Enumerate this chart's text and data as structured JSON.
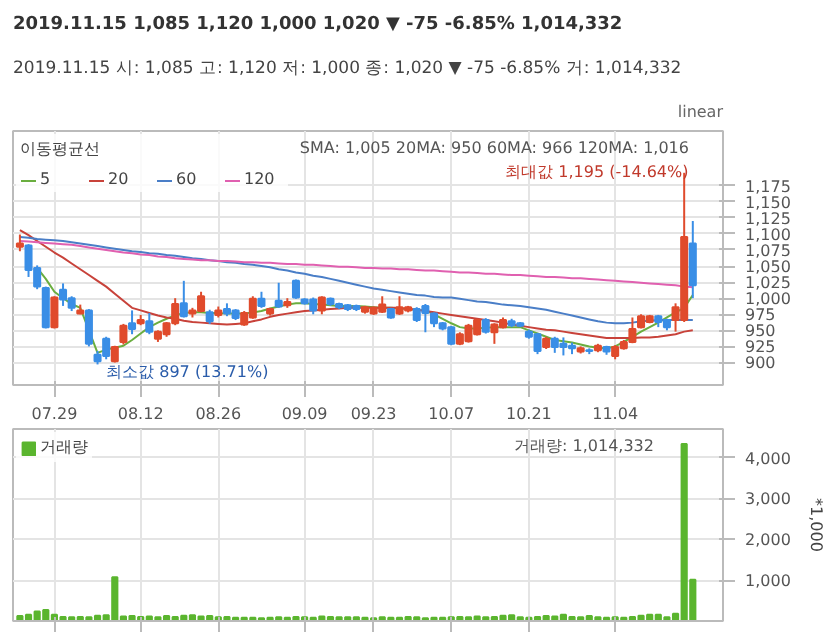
{
  "chart_data": [
    {
      "type": "candlestick",
      "title": "2019.11.15  1,085  1,120  1,000  1,020 ▼ -75 -6.85%  1,014,332",
      "subtitle": "2019.11.15 시: 1,085 고: 1,120 저: 1,000 종: 1,020 ▼  -75 -6.85% 거: 1,014,332",
      "categories": [
        null,
        null,
        null,
        null,
        "07.29",
        null,
        null,
        null,
        null,
        null,
        null,
        null,
        null,
        null,
        "08.12",
        null,
        null,
        null,
        null,
        null,
        null,
        null,
        null,
        "08.26",
        null,
        null,
        null,
        null,
        null,
        null,
        null,
        null,
        null,
        "09.09",
        null,
        null,
        null,
        null,
        null,
        null,
        null,
        "09.23",
        null,
        null,
        null,
        null,
        null,
        null,
        null,
        null,
        "10.07",
        null,
        null,
        null,
        null,
        null,
        null,
        null,
        null,
        "10.21",
        null,
        null,
        null,
        null,
        null,
        null,
        null,
        null,
        null,
        "11.04",
        null,
        null,
        null,
        null,
        null,
        null,
        null,
        null,
        null
      ],
      "ohlc": [
        [
          1080,
          1099,
          1073,
          1085
        ],
        [
          1082,
          1084,
          1033,
          1044
        ],
        [
          1047,
          1051,
          1014,
          1018
        ],
        [
          1016,
          1018,
          953,
          955
        ],
        [
          955,
          1003,
          953,
          1001
        ],
        [
          1013,
          1023,
          988,
          998
        ],
        [
          1000,
          1003,
          980,
          985
        ],
        [
          976,
          990,
          975,
          981
        ],
        [
          981,
          983,
          925,
          929
        ],
        [
          912,
          918,
          897,
          902
        ],
        [
          937,
          940,
          905,
          910
        ],
        [
          902,
          926,
          900,
          924
        ],
        [
          932,
          960,
          928,
          957
        ],
        [
          961,
          981,
          944,
          952
        ],
        [
          961,
          974,
          958,
          966
        ],
        [
          964,
          977,
          944,
          948
        ],
        [
          937,
          950,
          932,
          948
        ],
        [
          944,
          963,
          940,
          961
        ],
        [
          961,
          1000,
          958,
          991
        ],
        [
          992,
          1027,
          970,
          972
        ],
        [
          976,
          985,
          970,
          981
        ],
        [
          980,
          1010,
          978,
          1003
        ],
        [
          978,
          982,
          960,
          964
        ],
        [
          974,
          987,
          970,
          981
        ],
        [
          983,
          992,
          972,
          976
        ],
        [
          981,
          983,
          966,
          969
        ],
        [
          959,
          980,
          957,
          977
        ],
        [
          970,
          1003,
          968,
          999
        ],
        [
          999,
          1010,
          985,
          988
        ],
        [
          976,
          985,
          973,
          983
        ],
        [
          996,
          1024,
          985,
          987
        ],
        [
          989,
          1000,
          985,
          994
        ],
        [
          1027,
          1029,
          999,
          1001
        ],
        [
          998,
          1000,
          990,
          992
        ],
        [
          998,
          1001,
          975,
          981
        ],
        [
          981,
          1003,
          975,
          1001
        ],
        [
          999,
          1001,
          988,
          991
        ],
        [
          991,
          993,
          983,
          986
        ],
        [
          989,
          991,
          980,
          983
        ],
        [
          988,
          990,
          980,
          983
        ],
        [
          979,
          988,
          976,
          986
        ],
        [
          976,
          987,
          974,
          985
        ],
        [
          979,
          1003,
          977,
          990
        ],
        [
          983,
          985,
          968,
          970
        ],
        [
          976,
          1003,
          974,
          986
        ],
        [
          981,
          988,
          978,
          986
        ],
        [
          983,
          986,
          963,
          966
        ],
        [
          988,
          991,
          947,
          977
        ],
        [
          976,
          978,
          955,
          961
        ],
        [
          961,
          963,
          950,
          953
        ],
        [
          955,
          957,
          927,
          929
        ],
        [
          929,
          947,
          927,
          944
        ],
        [
          933,
          960,
          931,
          957
        ],
        [
          944,
          968,
          942,
          966
        ],
        [
          966,
          969,
          945,
          948
        ],
        [
          947,
          961,
          929,
          959
        ],
        [
          955,
          970,
          953,
          966
        ],
        [
          964,
          968,
          955,
          958
        ],
        [
          961,
          963,
          955,
          957
        ],
        [
          948,
          951,
          937,
          940
        ],
        [
          944,
          946,
          913,
          918
        ],
        [
          924,
          940,
          921,
          937
        ],
        [
          937,
          940,
          915,
          924
        ],
        [
          929,
          939,
          911,
          924
        ],
        [
          926,
          931,
          913,
          922
        ],
        [
          917,
          925,
          914,
          922
        ],
        [
          919,
          922,
          913,
          918
        ],
        [
          919,
          929,
          916,
          926
        ],
        [
          924,
          926,
          912,
          917
        ],
        [
          910,
          927,
          905,
          924
        ],
        [
          922,
          935,
          920,
          932
        ],
        [
          932,
          970,
          930,
          952
        ],
        [
          955,
          975,
          953,
          972
        ],
        [
          963,
          974,
          961,
          972
        ],
        [
          972,
          974,
          955,
          963
        ],
        [
          966,
          968,
          950,
          955
        ],
        [
          966,
          992,
          948,
          986
        ],
        [
          966,
          1195,
          963,
          1095
        ],
        [
          1085,
          1120,
          1000,
          1020
        ]
      ],
      "series": [
        {
          "type": "line",
          "name": "5",
          "color": "#6aae3f",
          "values": [
            null,
            null,
            1047,
            1030,
            1010,
            1000,
            991,
            985,
            950,
            915,
            920,
            923,
            926,
            935,
            945,
            955,
            962,
            968,
            973,
            977,
            978,
            978,
            977,
            977,
            976,
            976,
            976,
            978,
            980,
            984,
            987,
            990,
            992,
            992,
            991,
            990,
            989,
            988,
            988,
            988,
            987,
            986,
            985,
            985,
            984,
            983,
            982,
            981,
            975,
            968,
            961,
            955,
            953,
            953,
            954,
            955,
            955,
            955,
            955,
            950,
            945,
            940,
            935,
            933,
            931,
            928,
            925,
            923,
            922,
            925,
            932,
            940,
            948,
            955,
            962,
            970,
            978,
            985,
            1005
          ]
        },
        {
          "type": "line",
          "name": "20",
          "color": "#c8423a",
          "values": [
            1106,
            1098,
            1089,
            1080,
            1071,
            1063,
            1054,
            1045,
            1036,
            1027,
            1018,
            1007,
            996,
            985,
            981,
            977,
            973,
            970,
            968,
            965,
            963,
            962,
            961,
            960,
            959,
            960,
            961,
            964,
            967,
            971,
            974,
            976,
            978,
            980,
            981,
            982,
            983,
            984,
            985,
            985,
            985,
            985,
            985,
            985,
            985,
            983,
            982,
            980,
            978,
            976,
            974,
            972,
            970,
            968,
            966,
            964,
            962,
            959,
            957,
            955,
            953,
            951,
            950,
            948,
            946,
            944,
            942,
            940,
            938,
            938,
            938,
            938,
            939,
            939,
            940,
            942,
            944,
            948,
            950
          ]
        },
        {
          "type": "line",
          "name": "60",
          "color": "#4a7ec7",
          "values": [
            1095,
            1094,
            1092,
            1091,
            1090,
            1089,
            1087,
            1085,
            1083,
            1081,
            1079,
            1077,
            1075,
            1073,
            1072,
            1070,
            1069,
            1067,
            1066,
            1064,
            1062,
            1061,
            1059,
            1058,
            1056,
            1055,
            1053,
            1052,
            1050,
            1048,
            1045,
            1043,
            1040,
            1038,
            1035,
            1033,
            1030,
            1027,
            1024,
            1021,
            1018,
            1015,
            1013,
            1011,
            1009,
            1007,
            1005,
            1004,
            1002,
            1001,
            1001,
            999,
            997,
            995,
            994,
            992,
            990,
            989,
            988,
            986,
            984,
            982,
            979,
            976,
            973,
            970,
            967,
            964,
            962,
            961,
            961,
            962,
            964,
            965,
            966,
            966,
            966,
            966,
            966
          ]
        },
        {
          "type": "line",
          "name": "120",
          "color": "#e060b0",
          "values": [
            1089,
            1088,
            1087,
            1086,
            1085,
            1084,
            1083,
            1081,
            1079,
            1077,
            1075,
            1073,
            1071,
            1070,
            1068,
            1067,
            1065,
            1064,
            1062,
            1061,
            1060,
            1059,
            1059,
            1058,
            1058,
            1057,
            1056,
            1056,
            1055,
            1055,
            1054,
            1053,
            1053,
            1052,
            1052,
            1051,
            1050,
            1049,
            1049,
            1048,
            1047,
            1047,
            1046,
            1046,
            1045,
            1045,
            1044,
            1043,
            1043,
            1042,
            1041,
            1040,
            1040,
            1039,
            1038,
            1038,
            1037,
            1036,
            1036,
            1035,
            1034,
            1033,
            1033,
            1032,
            1031,
            1031,
            1030,
            1029,
            1028,
            1027,
            1026,
            1025,
            1024,
            1023,
            1022,
            1021,
            1020,
            1018,
            1017
          ]
        }
      ],
      "ylim": [
        865,
        1260
      ],
      "yticks": [
        900,
        925,
        950,
        975,
        {
          "value": 1000,
          "label": "1,000"
        },
        {
          "value": 1025,
          "label": "1,025"
        },
        {
          "value": 1050,
          "label": "1,050"
        },
        {
          "value": 1075,
          "label": "1,075"
        },
        {
          "value": 1100,
          "label": "1,100"
        },
        {
          "value": 1125,
          "label": "1,125"
        },
        {
          "value": 1150,
          "label": "1,150"
        },
        {
          "value": 1175,
          "label": "1,175"
        }
      ],
      "grid": true,
      "legend": "top left",
      "legend_title": "이동평균선",
      "annotations": [
        "SMA: 1,005  20MA:  950  60MA:  966  120MA: 1,016",
        "linear",
        "최대값 1,195 (-14.64%)",
        "최소값 897 (13.71%)"
      ]
    },
    {
      "type": "bar",
      "categories": [
        null,
        null,
        null,
        null,
        "07.29",
        null,
        null,
        null,
        null,
        null,
        null,
        null,
        null,
        null,
        "08.12",
        null,
        null,
        null,
        null,
        null,
        null,
        null,
        null,
        "08.26",
        null,
        null,
        null,
        null,
        null,
        null,
        null,
        null,
        null,
        "09.09",
        null,
        null,
        null,
        null,
        null,
        null,
        null,
        "09.23",
        null,
        null,
        null,
        null,
        null,
        null,
        null,
        null,
        "10.07",
        null,
        null,
        null,
        null,
        null,
        null,
        null,
        null,
        "10.21",
        null,
        null,
        null,
        null,
        null,
        null,
        null,
        null,
        null,
        "11.04",
        null,
        null,
        null,
        null,
        null,
        null,
        null,
        null,
        null
      ],
      "series": [
        {
          "name": "거래량",
          "color": "#5ab52e",
          "values": [
            120,
            150,
            230,
            270,
            150,
            100,
            90,
            100,
            90,
            130,
            140,
            1070,
            110,
            120,
            100,
            110,
            90,
            120,
            100,
            130,
            140,
            110,
            120,
            90,
            100,
            80,
            80,
            80,
            70,
            80,
            90,
            80,
            100,
            90,
            80,
            110,
            100,
            90,
            90,
            90,
            80,
            70,
            90,
            80,
            80,
            100,
            90,
            70,
            80,
            80,
            90,
            100,
            90,
            110,
            90,
            100,
            130,
            140,
            90,
            80,
            100,
            120,
            110,
            150,
            100,
            90,
            120,
            90,
            80,
            90,
            80,
            100,
            130,
            150,
            150,
            90,
            180,
            4330,
            1010
          ]
        }
      ],
      "ylim": [
        0,
        4700
      ],
      "yticks": [
        {
          "value": 1000,
          "label": "1,000"
        },
        {
          "value": 2000,
          "label": "2,000"
        },
        {
          "value": 3000,
          "label": "3,000"
        },
        {
          "value": 4000,
          "label": "4,000"
        }
      ],
      "ylabel": "*1,000",
      "tick_labels": "y",
      "grid": true,
      "legend": "top left",
      "annotations": [
        "거래량: 1,014,332"
      ]
    }
  ]
}
